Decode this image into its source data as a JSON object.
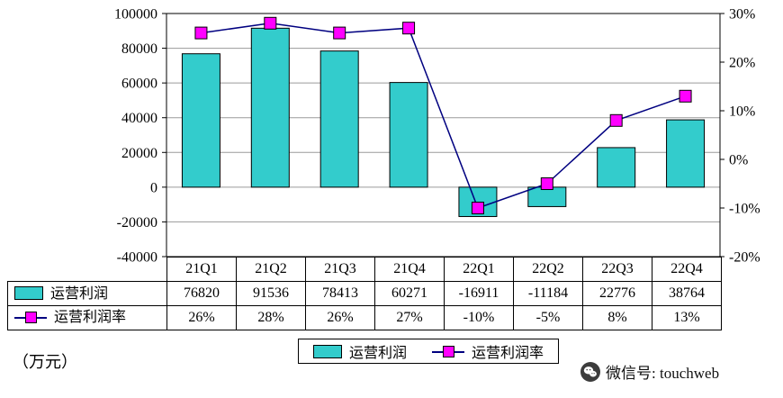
{
  "chart_data": {
    "type": "bar-line-combo",
    "categories": [
      "21Q1",
      "21Q2",
      "21Q3",
      "21Q4",
      "22Q1",
      "22Q2",
      "22Q3",
      "22Q4"
    ],
    "series": [
      {
        "name": "运营利润",
        "chart": "bar",
        "axis": "left",
        "values": [
          76820,
          91536,
          78413,
          60271,
          -16911,
          -11184,
          22776,
          38764
        ],
        "color": "#33CCCC"
      },
      {
        "name": "运营利润率",
        "chart": "line",
        "axis": "right",
        "values": [
          26,
          28,
          26,
          27,
          -10,
          -5,
          8,
          13
        ],
        "line_color": "#000080",
        "marker_color": "#FF00FF"
      }
    ],
    "left_axis": {
      "min": -40000,
      "max": 100000,
      "step": 20000,
      "ticks": [
        "100000",
        "80000",
        "60000",
        "40000",
        "20000",
        "0",
        "-20000",
        "-40000"
      ]
    },
    "right_axis": {
      "min": -20,
      "max": 30,
      "step": 10,
      "ticks": [
        "30%",
        "20%",
        "10%",
        "0%",
        "-10%",
        "-20%"
      ]
    },
    "grid": true,
    "legend_position": "bottom"
  },
  "table": {
    "rows": [
      {
        "label": "运营利润",
        "values": [
          "76820",
          "91536",
          "78413",
          "60271",
          "-16911",
          "-11184",
          "22776",
          "38764"
        ]
      },
      {
        "label": "运营利润率",
        "values": [
          "26%",
          "28%",
          "26%",
          "27%",
          "-10%",
          "-5%",
          "8%",
          "13%"
        ]
      }
    ]
  },
  "footer": {
    "unit_label": "（万元）",
    "legend": [
      {
        "label": "运营利润"
      },
      {
        "label": "运营利润率"
      }
    ],
    "watermark": "微信号: touchweb"
  }
}
